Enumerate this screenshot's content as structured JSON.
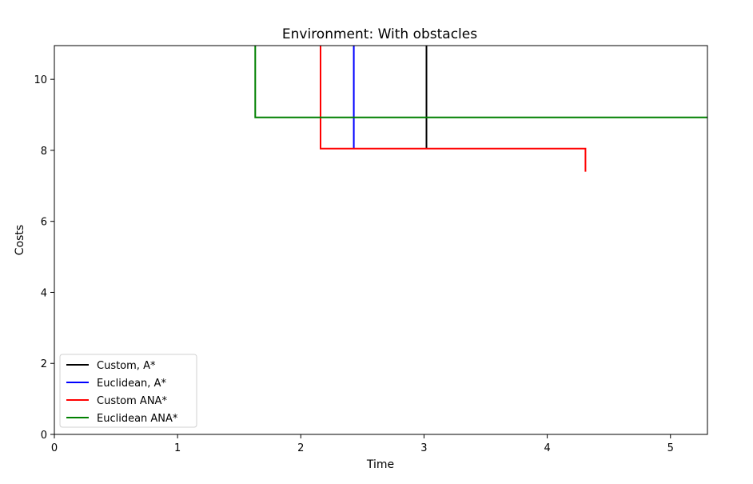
{
  "chart_data": {
    "type": "line",
    "title": "Environment: With obstacles",
    "xlabel": "Time",
    "ylabel": "Costs",
    "xlim": [
      0,
      5.3
    ],
    "ylim": [
      0,
      10.95
    ],
    "xticks": [
      "0",
      "1",
      "2",
      "3",
      "4",
      "5"
    ],
    "yticks": [
      "0",
      "2",
      "4",
      "6",
      "8",
      "10"
    ],
    "grid": false,
    "legend_position": "lower-left",
    "series": [
      {
        "name": "Custom, A*",
        "color": "#000000",
        "step": "post",
        "points": [
          [
            3.02,
            10.95
          ],
          [
            3.02,
            8.05
          ]
        ]
      },
      {
        "name": "Euclidean, A*",
        "color": "#0000ff",
        "step": "post",
        "points": [
          [
            2.43,
            10.95
          ],
          [
            2.43,
            8.05
          ]
        ]
      },
      {
        "name": "Custom ANA*",
        "color": "#ff0000",
        "step": "post",
        "points": [
          [
            2.16,
            10.95
          ],
          [
            2.16,
            8.05
          ],
          [
            4.31,
            8.05
          ],
          [
            4.31,
            7.4
          ]
        ]
      },
      {
        "name": "Euclidean ANA*",
        "color": "#008000",
        "step": "post",
        "points": [
          [
            1.63,
            10.95
          ],
          [
            1.63,
            8.93
          ],
          [
            5.3,
            8.93
          ]
        ]
      }
    ]
  }
}
